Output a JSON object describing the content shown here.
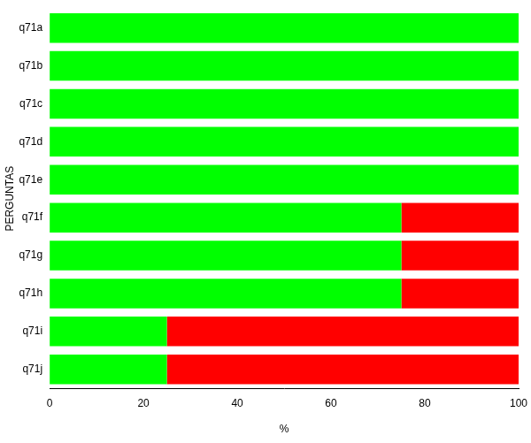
{
  "chart_data": {
    "type": "bar",
    "orientation": "horizontal",
    "stacked": true,
    "x_label": "%",
    "y_label": "PERGUNTAS",
    "categories": [
      "q71a",
      "q71b",
      "q71c",
      "q71d",
      "q71e",
      "q71f",
      "q71g",
      "q71h",
      "q71i",
      "q71j"
    ],
    "series": [
      {
        "color": "#00ff00",
        "values": [
          100,
          100,
          100,
          100,
          100,
          75,
          75,
          75,
          25,
          25
        ]
      },
      {
        "color": "#ff0000",
        "values": [
          0,
          0,
          0,
          0,
          0,
          25,
          25,
          25,
          75,
          75
        ]
      }
    ],
    "xlim": [
      0,
      100
    ],
    "xticks": [
      0,
      20,
      40,
      60,
      80,
      100
    ],
    "grid": false
  }
}
